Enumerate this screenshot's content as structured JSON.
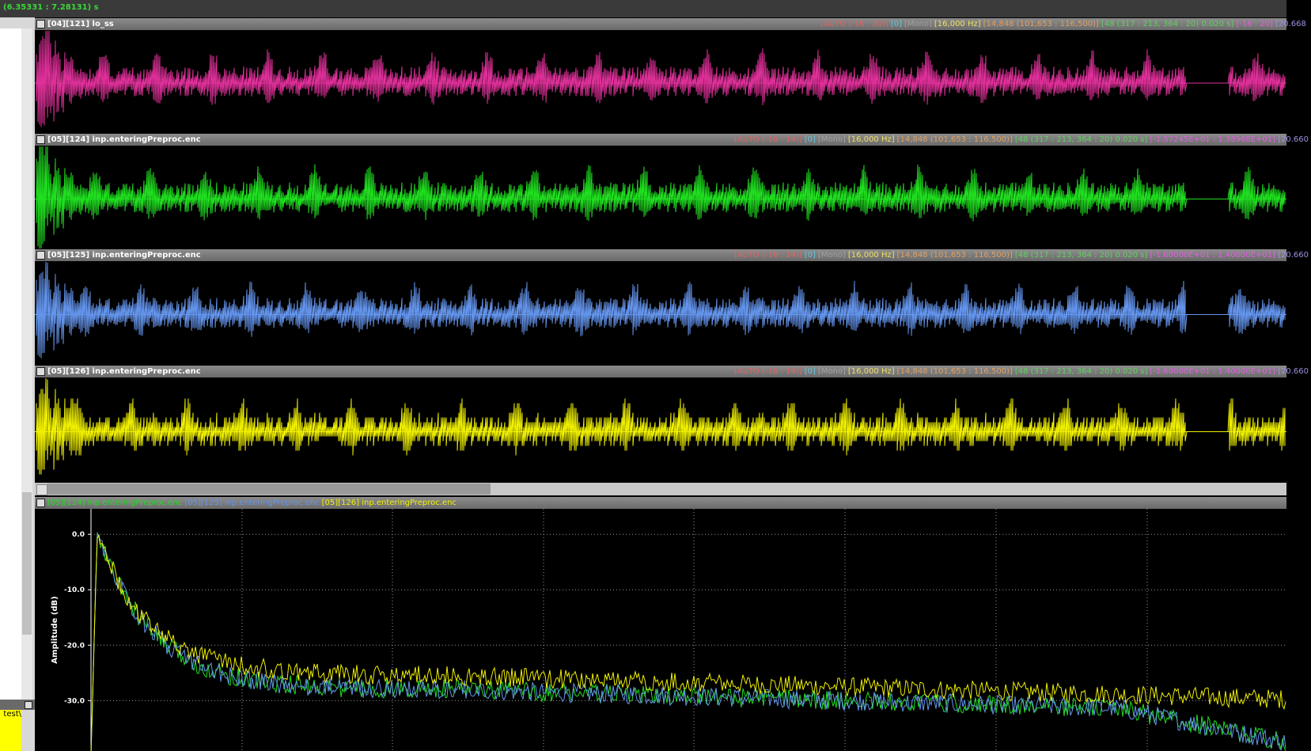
{
  "status_bar": {
    "time_range": "(6.35331 : 7.28131) s"
  },
  "side_panel": {
    "path_text": "\\test"
  },
  "tracks": [
    {
      "title": "[04][121] lo_ss",
      "color": "#e0309a",
      "info": [
        {
          "text": "[AUTO (-16 : 20)]",
          "color": "#e06464"
        },
        {
          "text": "[0]",
          "color": "#5fc8e0"
        },
        {
          "text": "[Mono]",
          "color": "#a0a0a0"
        },
        {
          "text": "[16,000 Hz]",
          "color": "#f0e060"
        },
        {
          "text": "[14,848 (101,653 : 116,500)]",
          "color": "#e0a060"
        },
        {
          "text": "[48 (317 : 213, 364 : 20) 0.020 s]",
          "color": "#60d060"
        },
        {
          "text": "[-16 : 20]",
          "color": "#e060e0"
        },
        {
          "text": "[20.668",
          "color": "#a090e0"
        }
      ]
    },
    {
      "title": "[05][124] inp.enteringPreproc.enc",
      "color": "#20e020",
      "info": [
        {
          "text": "[AUTO (-16 : 14)]",
          "color": "#e06464"
        },
        {
          "text": "[0]",
          "color": "#5fc8e0"
        },
        {
          "text": "[Mono]",
          "color": "#a0a0a0"
        },
        {
          "text": "[16,000 Hz]",
          "color": "#f0e060"
        },
        {
          "text": "[14,848 (101,653 : 116,500)]",
          "color": "#e0a060"
        },
        {
          "text": "[48 (317 : 213, 364 : 20) 0.020 s]",
          "color": "#60d060"
        },
        {
          "text": "[-1.57245E+01 : 1.38968E+01]",
          "color": "#e060e0"
        },
        {
          "text": "[20.660",
          "color": "#a090e0"
        }
      ]
    },
    {
      "title": "[05][125] inp.enteringPreproc.enc",
      "color": "#6495ed",
      "info": [
        {
          "text": "[AUTO (-16 : 14)]",
          "color": "#e06464"
        },
        {
          "text": "[0]",
          "color": "#5fc8e0"
        },
        {
          "text": "[Mono]",
          "color": "#a0a0a0"
        },
        {
          "text": "[16,000 Hz]",
          "color": "#f0e060"
        },
        {
          "text": "[14,848 (101,653 : 116,500)]",
          "color": "#e0a060"
        },
        {
          "text": "[48 (317 : 213, 364 : 20) 0.020 s]",
          "color": "#60d060"
        },
        {
          "text": "[-1.60000E+01 : 1.40000E+01]",
          "color": "#e060e0"
        },
        {
          "text": "[20.660",
          "color": "#a090e0"
        }
      ]
    },
    {
      "title": "[05][126] inp.enteringPreproc.enc",
      "color": "#f0f000",
      "info": [
        {
          "text": "[AUTO (-16 : 14)]",
          "color": "#e06464"
        },
        {
          "text": "[0]",
          "color": "#5fc8e0"
        },
        {
          "text": "[Mono]",
          "color": "#a0a0a0"
        },
        {
          "text": "[16,000 Hz]",
          "color": "#f0e060"
        },
        {
          "text": "[14,848 (101,653 : 116,500)]",
          "color": "#e0a060"
        },
        {
          "text": "[48 (317 : 213, 364 : 20) 0.020 s]",
          "color": "#60d060"
        },
        {
          "text": "[-1.60000E+01 : 1.40000E+01]",
          "color": "#e060e0"
        },
        {
          "text": "[20.660",
          "color": "#a090e0"
        }
      ]
    }
  ],
  "spectrum": {
    "legend": [
      {
        "name": "[05][124] inp.enteringPreproc.enc",
        "color": "#20e020"
      },
      {
        "name": "[05][125] inp.enteringPreproc.enc",
        "color": "#6495ed"
      },
      {
        "name": "[05][126] inp.enteringPreproc.enc",
        "color": "#f0f000"
      }
    ],
    "y_label": "Amplitude (dB)",
    "ylim": [
      -39.1,
      4.6
    ],
    "yticks": [
      {
        "value": 0,
        "label": "0.0"
      },
      {
        "value": -10,
        "label": "-10.0"
      },
      {
        "value": -20,
        "label": "-20.0"
      },
      {
        "value": -30,
        "label": "-30.0"
      }
    ]
  }
}
